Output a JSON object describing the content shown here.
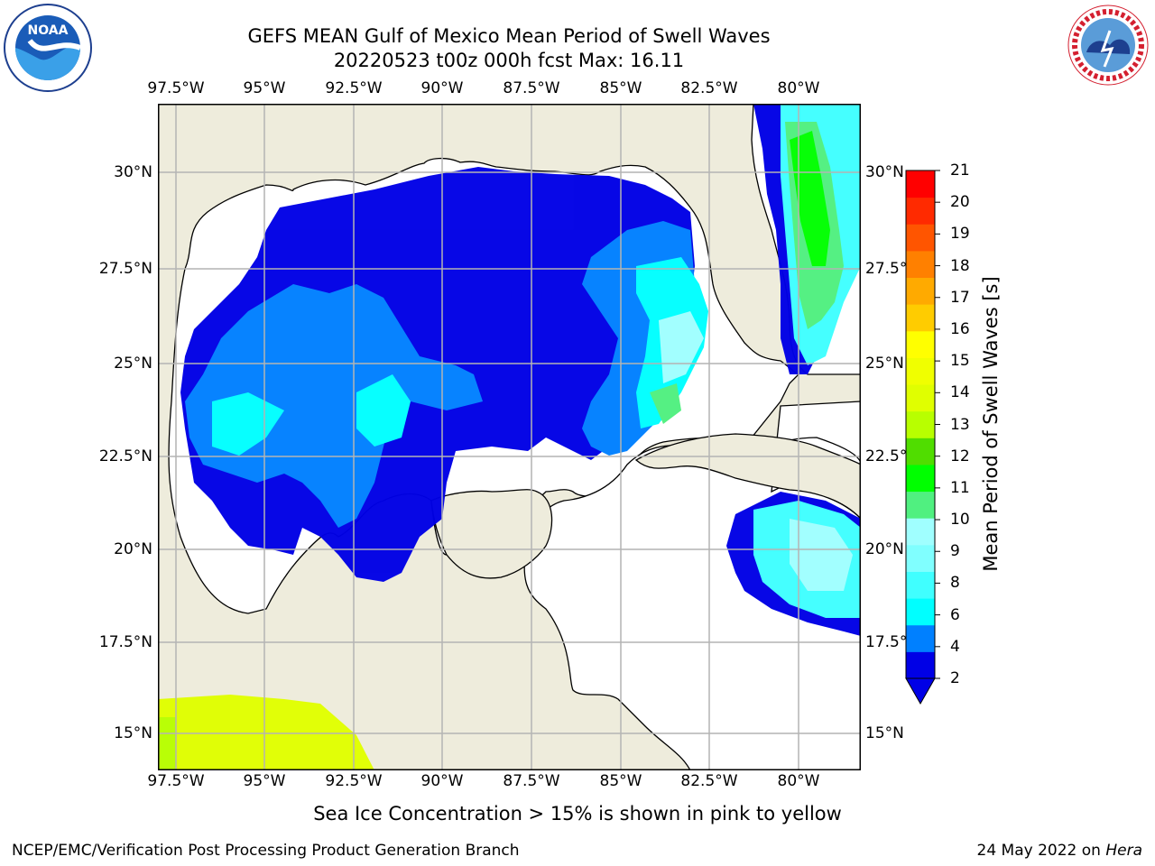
{
  "header": {
    "title_line1": "GEFS MEAN Gulf of Mexico Mean Period of Swell Waves",
    "title_line2": "20220523 t00z 000h fcst   Max: 16.11"
  },
  "logos": {
    "left": "NOAA",
    "right_text": "NATIONAL WEATHER SERVICE"
  },
  "map": {
    "lon_labels": [
      "97.5°W",
      "95°W",
      "92.5°W",
      "90°W",
      "87.5°W",
      "85°W",
      "82.5°W",
      "80°W"
    ],
    "lat_labels": [
      "30°N",
      "27.5°N",
      "25°N",
      "22.5°N",
      "20°N",
      "17.5°N",
      "15°N"
    ],
    "land_color": "#eeecdc",
    "grid_color": "#b4b4b4"
  },
  "colorbar": {
    "label": "Mean Period of Swell Waves [s]",
    "ticks": [
      "21",
      "20",
      "19",
      "18",
      "17",
      "16",
      "15",
      "14",
      "13",
      "12",
      "11",
      "10",
      "9",
      "8",
      "6",
      "4",
      "2"
    ],
    "colors": [
      "#0000e6",
      "#0080ff",
      "#00ffff",
      "#40ffff",
      "#80ffff",
      "#a0ffff",
      "#50f080",
      "#00ff00",
      "#50dd00",
      "#b8ff00",
      "#e0ff00",
      "#f0ff00",
      "#ffff00",
      "#ffcc00",
      "#ffaa00",
      "#ff8000",
      "#ff5500",
      "#ff2a00",
      "#ff0000"
    ]
  },
  "subtitle": "Sea Ice Concentration > 15% is shown in pink to yellow",
  "footer": {
    "left": "NCEP/EMC/Verification Post Processing Product Generation Branch",
    "right_prefix": "24 May 2022 on ",
    "right_host": "Hera"
  }
}
